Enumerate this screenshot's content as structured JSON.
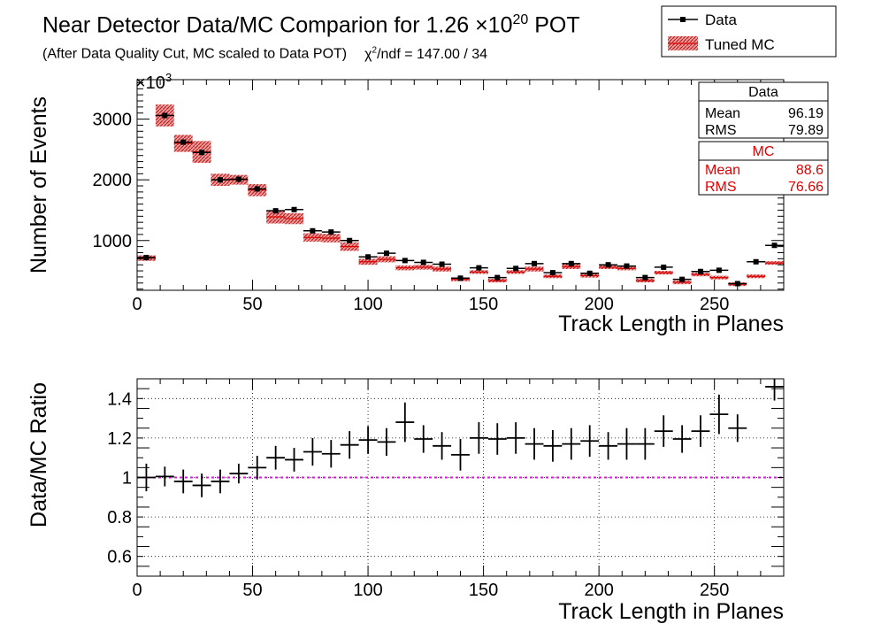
{
  "title": {
    "main_prefix": "Near Detector Data/MC Comparion for 1.26 ×10",
    "main_exp": "20",
    "main_suffix": " POT",
    "subtitle": "(After Data Quality Cut, MC scaled to Data POT)",
    "chi_symbol": "χ",
    "chi_exp": "2",
    "chi_text": "/ndf = 147.00 / 34"
  },
  "legend": {
    "data_label": "Data",
    "mc_label": "Tuned MC"
  },
  "stats": {
    "data": {
      "title": "Data",
      "mean_label": "Mean",
      "mean": "96.19",
      "rms_label": "RMS",
      "rms": "79.89"
    },
    "mc": {
      "title": "MC",
      "mean_label": "Mean",
      "mean": "88.6",
      "rms_label": "RMS",
      "rms": "76.66"
    }
  },
  "colors": {
    "data": "#000000",
    "mc_fill": "#cc3333",
    "mc_line": "#dd0000",
    "ratio_ref": "#ff00ff",
    "grid": "#000000"
  },
  "chart_data": [
    {
      "type": "bar",
      "name": "top",
      "xlabel": "Track Length in Planes",
      "ylabel": "Number of Events",
      "y_exponent_label": "×10",
      "y_exponent": "3",
      "xlim": [
        0,
        280
      ],
      "ylim": [
        180,
        3650
      ],
      "xticks": [
        0,
        50,
        100,
        150,
        200,
        250
      ],
      "yticks": [
        1000,
        2000,
        3000
      ],
      "grid": false,
      "legend_position": "top-right",
      "bin_width": 8,
      "x": [
        4,
        12,
        20,
        28,
        36,
        44,
        52,
        60,
        68,
        76,
        84,
        92,
        100,
        108,
        116,
        124,
        132,
        140,
        148,
        156,
        164,
        172,
        180,
        188,
        196,
        204,
        212,
        220,
        228,
        236,
        244,
        252,
        260,
        268,
        276
      ],
      "series": [
        {
          "name": "Data",
          "style": "points",
          "values": [
            720,
            3060,
            2620,
            2450,
            2000,
            2010,
            1850,
            1490,
            1510,
            1160,
            1140,
            1000,
            730,
            790,
            670,
            640,
            610,
            380,
            550,
            390,
            540,
            620,
            470,
            620,
            460,
            600,
            580,
            390,
            560,
            360,
            490,
            510,
            290,
            650,
            920
          ]
        },
        {
          "name": "Tuned MC",
          "style": "band",
          "values": [
            710,
            3060,
            2600,
            2460,
            2000,
            2000,
            1830,
            1390,
            1360,
            1050,
            1040,
            900,
            650,
            690,
            550,
            560,
            530,
            360,
            480,
            340,
            480,
            530,
            410,
            570,
            420,
            560,
            540,
            340,
            470,
            310,
            440,
            390,
            280,
            410,
            630
          ],
          "errors": [
            45,
            180,
            140,
            180,
            100,
            80,
            100,
            110,
            90,
            70,
            70,
            70,
            50,
            50,
            40,
            40,
            40,
            30,
            30,
            30,
            30,
            40,
            30,
            40,
            30,
            30,
            30,
            30,
            30,
            30,
            30,
            30,
            30,
            30,
            30
          ]
        }
      ]
    },
    {
      "type": "scatter",
      "name": "ratio",
      "xlabel": "Track Length in Planes",
      "ylabel": "Data/MC Ratio",
      "xlim": [
        0,
        280
      ],
      "ylim": [
        0.5,
        1.5
      ],
      "xticks": [
        0,
        50,
        100,
        150,
        200,
        250
      ],
      "yticks": [
        0.6,
        0.8,
        1.0,
        1.2,
        1.4
      ],
      "ytick_labels": [
        "0.6",
        "0.8",
        "1",
        "1.2",
        "1.4"
      ],
      "grid": true,
      "reference_line": 1.0,
      "bin_width": 8,
      "x": [
        4,
        12,
        20,
        28,
        36,
        44,
        52,
        60,
        68,
        76,
        84,
        92,
        100,
        108,
        116,
        124,
        132,
        140,
        148,
        156,
        164,
        172,
        180,
        188,
        196,
        204,
        212,
        220,
        228,
        236,
        244,
        252,
        260,
        276
      ],
      "values": [
        1.0,
        1.005,
        0.98,
        0.96,
        0.98,
        1.02,
        1.05,
        1.1,
        1.09,
        1.13,
        1.12,
        1.165,
        1.19,
        1.18,
        1.28,
        1.195,
        1.16,
        1.115,
        1.2,
        1.195,
        1.2,
        1.17,
        1.16,
        1.17,
        1.185,
        1.16,
        1.17,
        1.17,
        1.235,
        1.195,
        1.235,
        1.32,
        1.25,
        1.46
      ],
      "errors": [
        0.07,
        0.05,
        0.06,
        0.06,
        0.06,
        0.05,
        0.06,
        0.06,
        0.06,
        0.07,
        0.07,
        0.07,
        0.07,
        0.07,
        0.1,
        0.07,
        0.07,
        0.08,
        0.08,
        0.08,
        0.08,
        0.08,
        0.08,
        0.08,
        0.08,
        0.07,
        0.08,
        0.08,
        0.08,
        0.07,
        0.08,
        0.1,
        0.07,
        0.07
      ]
    }
  ]
}
